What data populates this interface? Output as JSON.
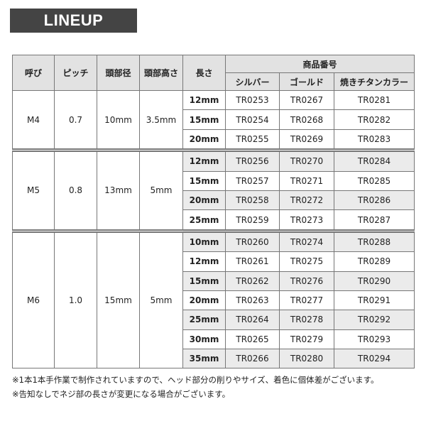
{
  "header": {
    "title": "LINEUP"
  },
  "table": {
    "headers": [
      "呼び",
      "ピッチ",
      "頭部径",
      "頭部高さ",
      "長さ"
    ],
    "group_header": "商品番号",
    "subheaders": [
      "シルバー",
      "ゴールド",
      "焼きチタンカラー"
    ],
    "groups": [
      {
        "size": "M4",
        "pitch": "0.7",
        "head_diameter": "10mm",
        "head_height": "3.5mm",
        "rows": [
          [
            "12mm",
            "TR0253",
            "TR0267",
            "TR0281"
          ],
          [
            "15mm",
            "TR0254",
            "TR0268",
            "TR0282"
          ],
          [
            "20mm",
            "TR0255",
            "TR0269",
            "TR0283"
          ]
        ]
      },
      {
        "size": "M5",
        "pitch": "0.8",
        "head_diameter": "13mm",
        "head_height": "5mm",
        "rows": [
          [
            "12mm",
            "TR0256",
            "TR0270",
            "TR0284"
          ],
          [
            "15mm",
            "TR0257",
            "TR0271",
            "TR0285"
          ],
          [
            "20mm",
            "TR0258",
            "TR0272",
            "TR0286"
          ],
          [
            "25mm",
            "TR0259",
            "TR0273",
            "TR0287"
          ]
        ]
      },
      {
        "size": "M6",
        "pitch": "1.0",
        "head_diameter": "15mm",
        "head_height": "5mm",
        "rows": [
          [
            "10mm",
            "TR0260",
            "TR0274",
            "TR0288"
          ],
          [
            "12mm",
            "TR0261",
            "TR0275",
            "TR0289"
          ],
          [
            "15mm",
            "TR0262",
            "TR0276",
            "TR0290"
          ],
          [
            "20mm",
            "TR0263",
            "TR0277",
            "TR0291"
          ],
          [
            "25mm",
            "TR0264",
            "TR0278",
            "TR0292"
          ],
          [
            "30mm",
            "TR0265",
            "TR0279",
            "TR0293"
          ],
          [
            "35mm",
            "TR0266",
            "TR0280",
            "TR0294"
          ]
        ]
      }
    ]
  },
  "notes": [
    "※1本1本手作業で制作されていますので、ヘッド部分の削りやサイズ、着色に個体差がございます。",
    "※告知なしでネジ部の長さが変更になる場合がございます。"
  ]
}
